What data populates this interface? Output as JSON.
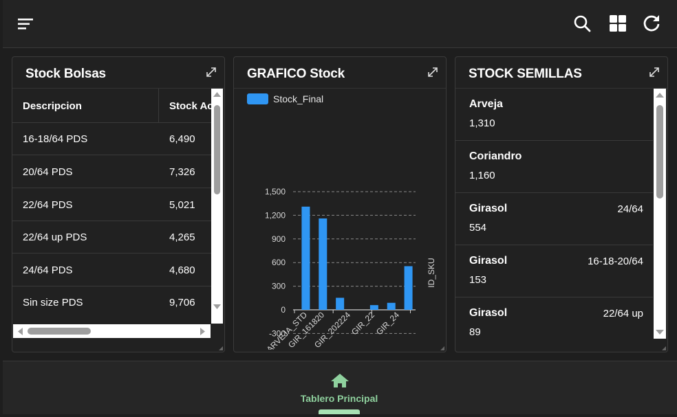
{
  "topbar": {
    "icons": [
      "menu-icon",
      "search-icon",
      "grid-icon",
      "refresh-icon"
    ]
  },
  "cards": {
    "bolsas": {
      "title": "Stock Bolsas",
      "columns": [
        "Descripcion",
        "Stock Ac"
      ],
      "rows": [
        {
          "desc": "16-18/64 PDS",
          "stock": "6,490"
        },
        {
          "desc": "20/64 PDS",
          "stock": "7,326"
        },
        {
          "desc": "22/64 PDS",
          "stock": "5,021"
        },
        {
          "desc": "22/64 up PDS",
          "stock": "4,265"
        },
        {
          "desc": "24/64 PDS",
          "stock": "4,680"
        },
        {
          "desc": "Sin size PDS",
          "stock": "9,706"
        }
      ]
    },
    "grafico": {
      "title": "GRAFICO Stock",
      "chart_data": {
        "type": "bar",
        "legend": [
          "Stock_Final"
        ],
        "series": [
          {
            "name": "Stock_Final",
            "values": [
              1310,
              1160,
              153,
              0,
              60,
              89,
              554
            ]
          }
        ],
        "categories": [
          "ARVEJA_STD",
          "GIR_161820",
          "",
          "GIR_202224",
          "",
          "GIR_22",
          "GIR_24"
        ],
        "yticks": [
          "1,500",
          "1,200",
          "900",
          "600",
          "300",
          "0",
          "-300"
        ],
        "ylim": [
          -300,
          1500
        ],
        "xlabel": "ID_SKU",
        "color": "#2f96f3",
        "grid": "dashed horizontal"
      }
    },
    "semillas": {
      "title": "STOCK SEMILLAS",
      "items": [
        {
          "name": "Arveja",
          "value": "1,310",
          "size": ""
        },
        {
          "name": "Coriandro",
          "value": "1,160",
          "size": ""
        },
        {
          "name": "Girasol",
          "value": "554",
          "size": "24/64"
        },
        {
          "name": "Girasol",
          "value": "153",
          "size": "16-18-20/64"
        },
        {
          "name": "Girasol",
          "value": "89",
          "size": "22/64 up"
        }
      ]
    }
  },
  "bottomnav": {
    "label": "Tablero Principal",
    "icon": "home-icon"
  }
}
